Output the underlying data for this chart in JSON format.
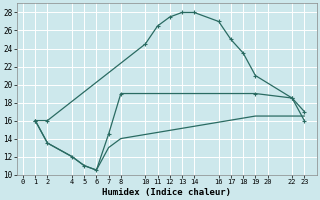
{
  "xlabel": "Humidex (Indice chaleur)",
  "bg_color": "#cde8ec",
  "grid_color": "#ffffff",
  "line_color": "#2a6b62",
  "xlim": [
    -0.5,
    24
  ],
  "ylim": [
    10,
    29
  ],
  "xticks": [
    0,
    1,
    2,
    4,
    5,
    6,
    7,
    8,
    10,
    11,
    12,
    13,
    14,
    16,
    17,
    18,
    19,
    20,
    22,
    23
  ],
  "yticks": [
    10,
    12,
    14,
    16,
    18,
    20,
    22,
    24,
    26,
    28
  ],
  "curve1_x": [
    1,
    2,
    10,
    11,
    12,
    13,
    14,
    16,
    17,
    18,
    19,
    22,
    23
  ],
  "curve1_y": [
    16,
    16,
    24.5,
    26.5,
    27.5,
    28,
    28,
    27,
    25,
    23.5,
    21,
    18.5,
    17
  ],
  "curve2_x": [
    1,
    2,
    4,
    5,
    6,
    7,
    8,
    19,
    22,
    23
  ],
  "curve2_y": [
    16,
    13.5,
    12.0,
    11.0,
    10.5,
    14.5,
    19.0,
    19.0,
    18.5,
    16.0
  ],
  "curve3_x": [
    1,
    2,
    4,
    5,
    6,
    7,
    8,
    19,
    22,
    23
  ],
  "curve3_y": [
    16.0,
    13.5,
    12.0,
    11.0,
    10.5,
    13.0,
    14.0,
    16.5,
    16.5,
    16.5
  ]
}
